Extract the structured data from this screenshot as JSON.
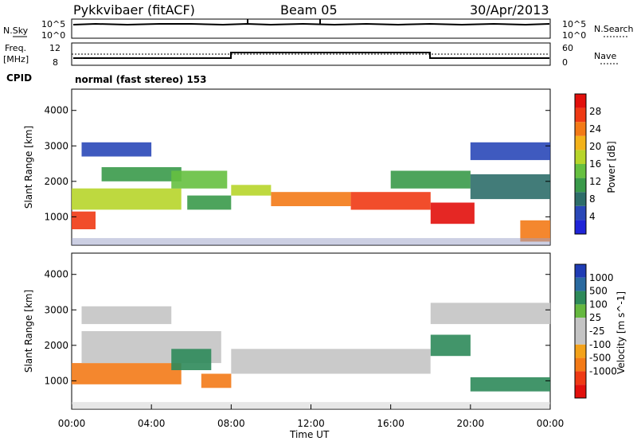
{
  "header": {
    "station": "Pykkvibaer (fitACF)",
    "beam": "Beam 05",
    "date": "30/Apr/2013"
  },
  "noise_panel": {
    "left_label": "N.Sky",
    "right_label": "N.Search",
    "ticks": [
      "10^5",
      "10^0"
    ],
    "right_ticks": [
      "10^5",
      "10^0"
    ]
  },
  "freq_panel": {
    "left_label_line1": "Freq.",
    "left_label_line2": "[MHz]",
    "left_ticks": [
      "12",
      "8"
    ],
    "right_label": "Nave",
    "right_ticks": [
      "60",
      "0"
    ]
  },
  "cpid": {
    "label": "CPID",
    "value": "normal (fast stereo) 153"
  },
  "colors": {
    "power_scale": [
      "#1f24d8",
      "#2a48b8",
      "#2e6e6a",
      "#3a9a4a",
      "#66c040",
      "#b7d52a",
      "#f3b21a",
      "#f37a17",
      "#ef3a14",
      "#e2100c"
    ],
    "velocity_scale": [
      "#1f3cb4",
      "#2a6aa0",
      "#2e8a5a",
      "#66b840",
      "#c4c4c4",
      "#c4c4c4",
      "#f3a21a",
      "#f37a17",
      "#ef3a14",
      "#e2100c"
    ]
  },
  "chart_data": [
    {
      "type": "heatmap",
      "name": "power",
      "ylabel": "Slant Range [km]",
      "colorbar_label": "Power [dB]",
      "ylim": [
        200,
        4600
      ],
      "xlim": [
        "00:00",
        "24:00"
      ],
      "y_ticks": [
        "1000",
        "2000",
        "3000",
        "4000"
      ],
      "colorbar_ticks": [
        "4",
        "8",
        "12",
        "16",
        "20",
        "24",
        "28"
      ],
      "colorbar_range": [
        0,
        32
      ],
      "regions": [
        {
          "t0": 0.0,
          "t1": 1.2,
          "r0": 650,
          "r1": 1150,
          "level": 28
        },
        {
          "t0": 0.0,
          "t1": 5.5,
          "r0": 1200,
          "r1": 1800,
          "level": 16
        },
        {
          "t0": 1.5,
          "t1": 5.5,
          "r0": 2000,
          "r1": 2400,
          "level": 12
        },
        {
          "t0": 0.5,
          "t1": 4.0,
          "r0": 2700,
          "r1": 3100,
          "level": 6
        },
        {
          "t0": 5.0,
          "t1": 7.8,
          "r0": 1800,
          "r1": 2300,
          "level": 14
        },
        {
          "t0": 5.8,
          "t1": 8.0,
          "r0": 1200,
          "r1": 1600,
          "level": 10
        },
        {
          "t0": 8.0,
          "t1": 10.0,
          "r0": 1600,
          "r1": 1900,
          "level": 18
        },
        {
          "t0": 10.0,
          "t1": 14.0,
          "r0": 1300,
          "r1": 1700,
          "level": 24
        },
        {
          "t0": 14.0,
          "t1": 18.0,
          "r0": 1200,
          "r1": 1700,
          "level": 26
        },
        {
          "t0": 18.0,
          "t1": 20.2,
          "r0": 800,
          "r1": 1400,
          "level": 30
        },
        {
          "t0": 16.0,
          "t1": 20.0,
          "r0": 1800,
          "r1": 2300,
          "level": 12
        },
        {
          "t0": 20.0,
          "t1": 24.0,
          "r0": 1500,
          "r1": 2200,
          "level": 8
        },
        {
          "t0": 20.0,
          "t1": 24.0,
          "r0": 2600,
          "r1": 3100,
          "level": 5
        },
        {
          "t0": 22.5,
          "t1": 24.0,
          "r0": 300,
          "r1": 900,
          "level": 24
        }
      ]
    },
    {
      "type": "heatmap",
      "name": "velocity",
      "ylabel": "Slant Range [km]",
      "xlabel": "Time UT",
      "colorbar_label": "Velocity [m s^-1]",
      "ylim": [
        200,
        4600
      ],
      "xlim": [
        "00:00",
        "24:00"
      ],
      "y_ticks": [
        "1000",
        "2000",
        "3000",
        "4000"
      ],
      "x_ticks": [
        "00:00",
        "04:00",
        "08:00",
        "12:00",
        "16:00",
        "20:00",
        "00:00"
      ],
      "colorbar_ticks": [
        "1000",
        "500",
        "100",
        "25",
        "-25",
        "-100",
        "-500",
        "-1000"
      ],
      "regions": [
        {
          "t0": 0.0,
          "t1": 5.5,
          "r0": 900,
          "r1": 1500,
          "level": -300
        },
        {
          "t0": 0.5,
          "t1": 7.5,
          "r0": 1500,
          "r1": 2400,
          "level": 0
        },
        {
          "t0": 0.5,
          "t1": 5.0,
          "r0": 2600,
          "r1": 3100,
          "level": 0
        },
        {
          "t0": 5.0,
          "t1": 7.0,
          "r0": 1300,
          "r1": 1900,
          "level": 150
        },
        {
          "t0": 6.5,
          "t1": 8.0,
          "r0": 800,
          "r1": 1200,
          "level": -300
        },
        {
          "t0": 8.0,
          "t1": 18.0,
          "r0": 1200,
          "r1": 1900,
          "level": 0
        },
        {
          "t0": 18.0,
          "t1": 20.0,
          "r0": 1700,
          "r1": 2300,
          "level": 150
        },
        {
          "t0": 20.0,
          "t1": 24.0,
          "r0": 700,
          "r1": 1100,
          "level": 400
        },
        {
          "t0": 18.0,
          "t1": 24.0,
          "r0": 2600,
          "r1": 3200,
          "level": 0
        }
      ]
    }
  ],
  "axis": {
    "xlabel": "Time UT"
  }
}
